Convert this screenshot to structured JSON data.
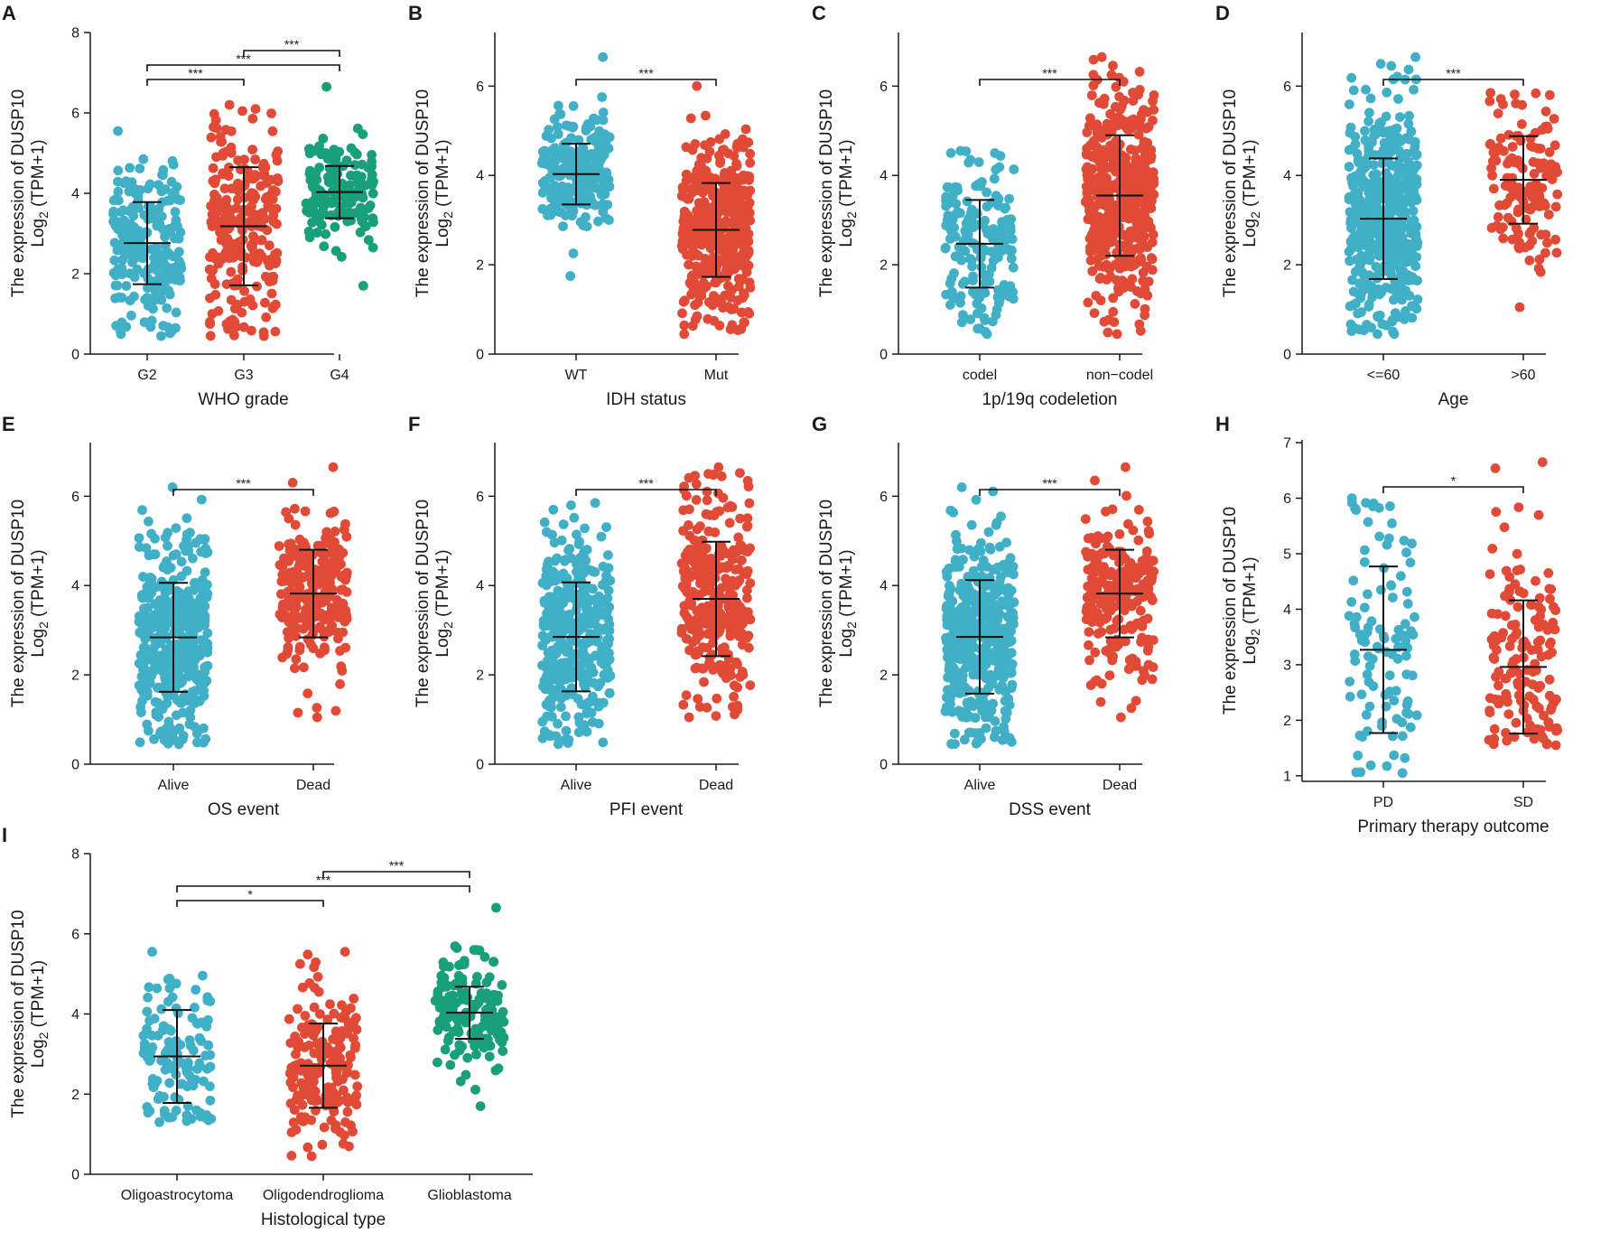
{
  "figure": {
    "y_label_line1": "The expression of DUSP10",
    "y_label_line2_prefix": "Log",
    "y_label_line2_sub": "2",
    "y_label_line2_suffix": " (TPM+1)"
  },
  "colors": {
    "blue": "#41b0c7",
    "red": "#e04a36",
    "green": "#199f7a",
    "axis": "#1a1a1a"
  },
  "chart_data": [
    {
      "panel": "A",
      "type": "scatter",
      "xlabel": "WHO grade",
      "ylim": [
        0,
        8
      ],
      "yticks": [
        0,
        2,
        4,
        6,
        8
      ],
      "groups": [
        {
          "name": "G2",
          "color": "#41b0c7",
          "n": 230,
          "mean": 2.76,
          "sd": 1.02,
          "min": 0.45,
          "max": 5.55
        },
        {
          "name": "G3",
          "color": "#e04a36",
          "n": 250,
          "mean": 3.18,
          "sd": 1.47,
          "min": 0.45,
          "max": 6.2
        },
        {
          "name": "G4",
          "color": "#199f7a",
          "n": 160,
          "mean": 4.03,
          "sd": 0.65,
          "min": 1.7,
          "max": 6.65
        }
      ],
      "comparisons": [
        {
          "from": 0,
          "to": 1,
          "label": "***"
        },
        {
          "from": 0,
          "to": 2,
          "label": "***"
        },
        {
          "from": 1,
          "to": 2,
          "label": "***"
        }
      ]
    },
    {
      "panel": "B",
      "type": "scatter",
      "xlabel": "IDH status",
      "ylim": [
        0,
        7.2
      ],
      "yticks": [
        0,
        2,
        4,
        6
      ],
      "groups": [
        {
          "name": "WT",
          "color": "#41b0c7",
          "n": 230,
          "mean": 4.03,
          "sd": 0.68,
          "min": 1.75,
          "max": 6.65
        },
        {
          "name": "Mut",
          "color": "#e04a36",
          "n": 420,
          "mean": 2.78,
          "sd": 1.05,
          "min": 0.45,
          "max": 6.0
        }
      ],
      "comparisons": [
        {
          "from": 0,
          "to": 1,
          "label": "***"
        }
      ]
    },
    {
      "panel": "C",
      "type": "scatter",
      "xlabel": "1p/19q codeletion",
      "ylim": [
        0,
        7.2
      ],
      "yticks": [
        0,
        2,
        4,
        6
      ],
      "groups": [
        {
          "name": "codel",
          "color": "#41b0c7",
          "n": 170,
          "mean": 2.47,
          "sd": 0.98,
          "min": 0.45,
          "max": 4.55
        },
        {
          "name": "non−codel",
          "color": "#e04a36",
          "n": 480,
          "mean": 3.55,
          "sd": 1.35,
          "min": 0.45,
          "max": 6.65
        }
      ],
      "comparisons": [
        {
          "from": 0,
          "to": 1,
          "label": "***"
        }
      ]
    },
    {
      "panel": "D",
      "type": "scatter",
      "xlabel": "Age",
      "ylim": [
        0,
        7.2
      ],
      "yticks": [
        0,
        2,
        4,
        6
      ],
      "groups": [
        {
          "name": "<=60",
          "color": "#41b0c7",
          "n": 520,
          "mean": 3.03,
          "sd": 1.35,
          "min": 0.45,
          "max": 6.65
        },
        {
          "name": ">60",
          "color": "#e04a36",
          "n": 140,
          "mean": 3.9,
          "sd": 0.98,
          "min": 1.05,
          "max": 5.85
        }
      ],
      "comparisons": [
        {
          "from": 0,
          "to": 1,
          "label": "***"
        }
      ]
    },
    {
      "panel": "E",
      "type": "scatter",
      "xlabel": "OS event",
      "ylim": [
        0,
        7.2
      ],
      "yticks": [
        0,
        2,
        4,
        6
      ],
      "groups": [
        {
          "name": "Alive",
          "color": "#41b0c7",
          "n": 420,
          "mean": 2.84,
          "sd": 1.22,
          "min": 0.45,
          "max": 6.2
        },
        {
          "name": "Dead",
          "color": "#e04a36",
          "n": 250,
          "mean": 3.82,
          "sd": 0.98,
          "min": 1.05,
          "max": 6.65
        }
      ],
      "comparisons": [
        {
          "from": 0,
          "to": 1,
          "label": "***"
        }
      ]
    },
    {
      "panel": "F",
      "type": "scatter",
      "xlabel": "PFI event",
      "ylim": [
        0,
        7.2
      ],
      "yticks": [
        0,
        2,
        4,
        6
      ],
      "groups": [
        {
          "name": "Alive",
          "color": "#41b0c7",
          "n": 370,
          "mean": 2.85,
          "sd": 1.22,
          "min": 0.45,
          "max": 5.85
        },
        {
          "name": "Dead",
          "color": "#e04a36",
          "n": 300,
          "mean": 3.7,
          "sd": 1.28,
          "min": 1.05,
          "max": 6.65
        }
      ],
      "comparisons": [
        {
          "from": 0,
          "to": 1,
          "label": "***"
        }
      ]
    },
    {
      "panel": "G",
      "type": "scatter",
      "xlabel": "DSS event",
      "ylim": [
        0,
        7.2
      ],
      "yticks": [
        0,
        2,
        4,
        6
      ],
      "groups": [
        {
          "name": "Alive",
          "color": "#41b0c7",
          "n": 430,
          "mean": 2.85,
          "sd": 1.27,
          "min": 0.45,
          "max": 6.2
        },
        {
          "name": "Dead",
          "color": "#e04a36",
          "n": 230,
          "mean": 3.82,
          "sd": 0.98,
          "min": 1.05,
          "max": 6.65
        }
      ],
      "comparisons": [
        {
          "from": 0,
          "to": 1,
          "label": "***"
        }
      ]
    },
    {
      "panel": "H",
      "type": "scatter",
      "xlabel": "Primary therapy outcome",
      "ylim": [
        0.9,
        7.05
      ],
      "yticks": [
        1,
        2,
        3,
        4,
        5,
        6,
        7
      ],
      "groups": [
        {
          "name": "PD",
          "color": "#41b0c7",
          "n": 110,
          "mean": 3.27,
          "sd": 1.5,
          "min": 1.05,
          "max": 6.0
        },
        {
          "name": "SD",
          "color": "#e04a36",
          "n": 150,
          "mean": 2.96,
          "sd": 1.2,
          "min": 1.55,
          "max": 6.65
        }
      ],
      "comparisons": [
        {
          "from": 0,
          "to": 1,
          "label": "*"
        }
      ]
    },
    {
      "panel": "I",
      "type": "scatter",
      "xlabel": "Histological type",
      "ylim": [
        0,
        8
      ],
      "yticks": [
        0,
        2,
        4,
        6,
        8
      ],
      "groups": [
        {
          "name": "Oligoastrocytoma",
          "color": "#41b0c7",
          "n": 130,
          "mean": 2.94,
          "sd": 1.16,
          "min": 1.3,
          "max": 5.55
        },
        {
          "name": "Oligodendroglioma",
          "color": "#e04a36",
          "n": 190,
          "mean": 2.71,
          "sd": 1.05,
          "min": 0.45,
          "max": 5.55
        },
        {
          "name": "Glioblastoma",
          "color": "#199f7a",
          "n": 160,
          "mean": 4.03,
          "sd": 0.65,
          "min": 1.7,
          "max": 6.65
        }
      ],
      "comparisons": [
        {
          "from": 0,
          "to": 1,
          "label": "*"
        },
        {
          "from": 0,
          "to": 2,
          "label": "***"
        },
        {
          "from": 1,
          "to": 2,
          "label": "***"
        }
      ]
    }
  ]
}
